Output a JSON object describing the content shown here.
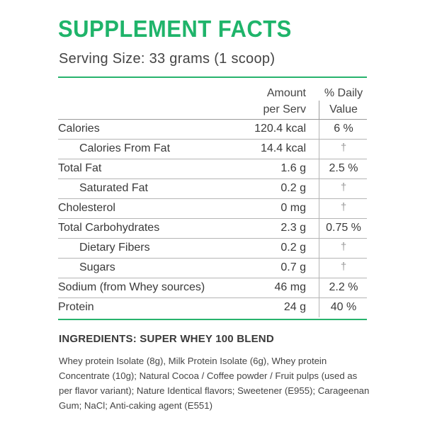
{
  "header": {
    "title": "SUPPLEMENT FACTS",
    "serving_size": "Serving Size: 33 grams (1 scoop)"
  },
  "colors": {
    "accent": "#1fb46a",
    "text": "#3a3a3a",
    "rule": "#b5b5b5"
  },
  "table": {
    "columns": {
      "amount_line1": "Amount",
      "amount_line2": "per Serv",
      "daily_line1": "% Daily",
      "daily_line2": "Value"
    },
    "rows": [
      {
        "name": "Calories",
        "amount": "120.4 kcal",
        "daily": "6 %"
      },
      {
        "name": "Calories From Fat",
        "amount": "14.4 kcal",
        "daily": "†"
      },
      {
        "name": "Total Fat",
        "amount": "1.6 g",
        "daily": "2.5 %"
      },
      {
        "name": "Saturated Fat",
        "amount": "0.2 g",
        "daily": "†"
      },
      {
        "name": "Cholesterol",
        "amount": "0 mg",
        "daily": "†"
      },
      {
        "name": "Total Carbohydrates",
        "amount": "2.3 g",
        "daily": "0.75 %"
      },
      {
        "name": "Dietary Fibers",
        "amount": "0.2 g",
        "daily": "†"
      },
      {
        "name": "Sugars",
        "amount": "0.7 g",
        "daily": "†"
      },
      {
        "name": "Sodium (from Whey sources)",
        "amount": "46 mg",
        "daily": "2.2 %"
      },
      {
        "name": "Protein",
        "amount": "24 g",
        "daily": "40 %"
      }
    ]
  },
  "ingredients": {
    "title": "INGREDIENTS: SUPER WHEY 100 BLEND",
    "text": "Whey protein Isolate (8g), Milk Protein Isolate (6g), Whey protein Concentrate (10g); Natural Cocoa / Coffee powder / Fruit pulps (used as per flavor variant); Nature Identical flavors; Sweetener (E955); Carageenan Gum; NaCl; Anti-caking agent (E551)"
  }
}
